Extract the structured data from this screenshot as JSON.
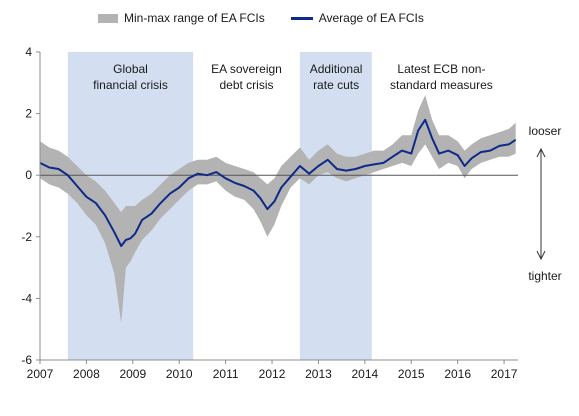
{
  "chart_data": {
    "type": "line",
    "title": "",
    "xlabel": "",
    "ylabel": "",
    "xlim": [
      2007.0,
      2017.3
    ],
    "ylim": [
      -6,
      4
    ],
    "x_ticks": [
      "2007",
      "2008",
      "2009",
      "2010",
      "2011",
      "2012",
      "2013",
      "2014",
      "2015",
      "2016",
      "2017"
    ],
    "y_ticks": [
      4,
      2,
      0,
      -2,
      -4,
      -6
    ],
    "legend": {
      "placement": "top",
      "items": [
        "Min-max range of EA FCIs",
        "Average of EA FCIs"
      ]
    },
    "shaded_periods": [
      {
        "label": "Global financial crisis",
        "start": 2007.6,
        "end": 2010.3,
        "shaded": true
      },
      {
        "label": "EA sovereign debt crisis",
        "start": 2010.3,
        "end": 2012.6,
        "shaded": false
      },
      {
        "label": "Additional rate cuts",
        "start": 2012.6,
        "end": 2014.15,
        "shaded": true
      },
      {
        "label": "Latest ECB non-standard measures",
        "start": 2014.15,
        "end": 2017.3,
        "shaded": false
      }
    ],
    "side_labels": {
      "top": "looser",
      "bottom": "tighter"
    },
    "series": [
      {
        "name": "Average of EA FCIs",
        "color": "#0d2a8a",
        "x": [
          2007.0,
          2007.2,
          2007.4,
          2007.6,
          2007.8,
          2008.0,
          2008.2,
          2008.4,
          2008.6,
          2008.75,
          2008.85,
          2008.95,
          2009.05,
          2009.2,
          2009.4,
          2009.6,
          2009.8,
          2010.0,
          2010.2,
          2010.4,
          2010.6,
          2010.8,
          2011.0,
          2011.2,
          2011.4,
          2011.6,
          2011.75,
          2011.9,
          2012.05,
          2012.2,
          2012.4,
          2012.6,
          2012.8,
          2013.0,
          2013.2,
          2013.4,
          2013.6,
          2013.8,
          2014.0,
          2014.2,
          2014.4,
          2014.6,
          2014.8,
          2015.0,
          2015.15,
          2015.3,
          2015.45,
          2015.6,
          2015.8,
          2016.0,
          2016.15,
          2016.3,
          2016.5,
          2016.7,
          2016.9,
          2017.1,
          2017.25
        ],
        "values": [
          0.4,
          0.25,
          0.2,
          0.0,
          -0.35,
          -0.7,
          -0.9,
          -1.3,
          -1.85,
          -2.3,
          -2.1,
          -2.05,
          -1.9,
          -1.45,
          -1.25,
          -0.9,
          -0.6,
          -0.4,
          -0.1,
          0.05,
          0.0,
          0.1,
          -0.1,
          -0.25,
          -0.35,
          -0.5,
          -0.75,
          -1.1,
          -0.85,
          -0.4,
          -0.05,
          0.3,
          0.05,
          0.3,
          0.5,
          0.2,
          0.15,
          0.2,
          0.3,
          0.35,
          0.4,
          0.6,
          0.8,
          0.7,
          1.45,
          1.8,
          1.2,
          0.7,
          0.8,
          0.65,
          0.3,
          0.55,
          0.75,
          0.8,
          0.95,
          1.0,
          1.15
        ]
      },
      {
        "name": "Min-max range of EA FCIs",
        "color": "#b3b3b3",
        "x": [
          2007.0,
          2007.2,
          2007.4,
          2007.6,
          2007.8,
          2008.0,
          2008.2,
          2008.4,
          2008.6,
          2008.75,
          2008.85,
          2008.95,
          2009.05,
          2009.2,
          2009.4,
          2009.6,
          2009.8,
          2010.0,
          2010.2,
          2010.4,
          2010.6,
          2010.8,
          2011.0,
          2011.2,
          2011.4,
          2011.6,
          2011.75,
          2011.9,
          2012.05,
          2012.2,
          2012.4,
          2012.6,
          2012.8,
          2013.0,
          2013.2,
          2013.4,
          2013.6,
          2013.8,
          2014.0,
          2014.2,
          2014.4,
          2014.6,
          2014.8,
          2015.0,
          2015.15,
          2015.3,
          2015.45,
          2015.6,
          2015.8,
          2016.0,
          2016.15,
          2016.3,
          2016.5,
          2016.7,
          2016.9,
          2017.1,
          2017.25
        ],
        "min": [
          -0.1,
          -0.3,
          -0.4,
          -0.6,
          -0.9,
          -1.3,
          -1.6,
          -2.2,
          -3.2,
          -4.8,
          -3.0,
          -2.8,
          -2.5,
          -2.1,
          -1.8,
          -1.4,
          -1.1,
          -0.8,
          -0.5,
          -0.3,
          -0.3,
          -0.2,
          -0.5,
          -0.7,
          -0.8,
          -1.1,
          -1.5,
          -2.0,
          -1.6,
          -1.0,
          -0.4,
          -0.1,
          -0.3,
          0.0,
          0.1,
          -0.1,
          -0.2,
          -0.1,
          0.0,
          0.1,
          0.2,
          0.3,
          0.4,
          0.3,
          0.7,
          1.0,
          0.6,
          0.2,
          0.4,
          0.3,
          -0.1,
          0.2,
          0.4,
          0.5,
          0.6,
          0.6,
          0.7
        ],
        "max": [
          1.1,
          0.9,
          0.8,
          0.6,
          0.3,
          0.0,
          -0.2,
          -0.5,
          -0.9,
          -1.2,
          -1.0,
          -1.0,
          -1.0,
          -0.8,
          -0.6,
          -0.3,
          0.0,
          0.2,
          0.4,
          0.5,
          0.5,
          0.6,
          0.4,
          0.3,
          0.2,
          0.1,
          -0.1,
          -0.3,
          -0.1,
          0.3,
          0.6,
          0.9,
          0.5,
          0.8,
          1.0,
          0.7,
          0.6,
          0.6,
          0.7,
          0.8,
          0.8,
          1.0,
          1.3,
          1.3,
          2.1,
          2.6,
          1.8,
          1.3,
          1.3,
          1.1,
          0.8,
          1.0,
          1.2,
          1.3,
          1.4,
          1.5,
          1.7
        ]
      }
    ]
  }
}
